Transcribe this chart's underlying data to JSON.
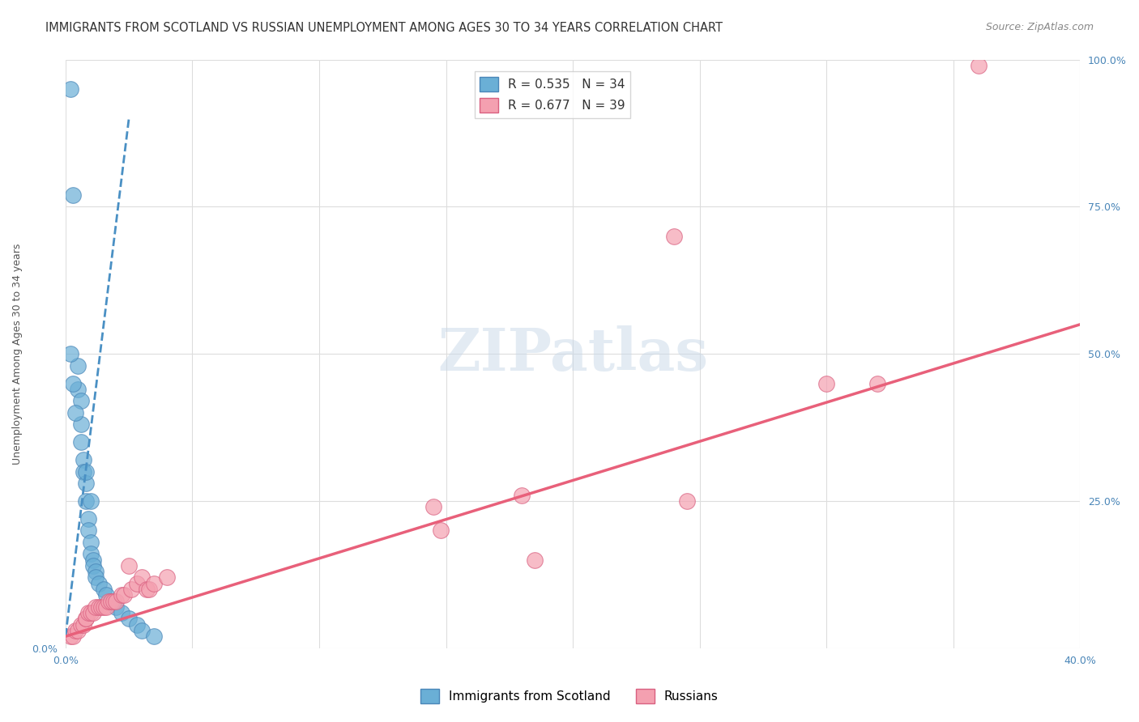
{
  "title": "IMMIGRANTS FROM SCOTLAND VS RUSSIAN UNEMPLOYMENT AMONG AGES 30 TO 34 YEARS CORRELATION CHART",
  "source": "Source: ZipAtlas.com",
  "xlabel": "",
  "ylabel": "Unemployment Among Ages 30 to 34 years",
  "xlim": [
    0.0,
    0.4
  ],
  "ylim": [
    0.0,
    1.0
  ],
  "xticks": [
    0.0,
    0.05,
    0.1,
    0.15,
    0.2,
    0.25,
    0.3,
    0.35,
    0.4
  ],
  "xticklabels": [
    "0.0%",
    "",
    "",
    "",
    "",
    "",
    "",
    "",
    "40.0%"
  ],
  "yticks_left": [
    0.0,
    0.25,
    0.5,
    0.75,
    1.0
  ],
  "yticklabels_left": [
    "0.0%",
    "",
    "",
    "",
    ""
  ],
  "yticks_right": [
    0.0,
    0.25,
    0.5,
    0.75,
    1.0
  ],
  "yticklabels_right": [
    "",
    "25.0%",
    "50.0%",
    "75.0%",
    "100.0%"
  ],
  "legend_r1": "R = 0.535",
  "legend_n1": "N = 34",
  "legend_r2": "R = 0.677",
  "legend_n2": "N = 39",
  "color_blue": "#6aafd6",
  "color_pink": "#f4a0b0",
  "color_blue_line": "#4a90c4",
  "color_pink_line": "#e8607a",
  "color_blue_dark": "#4a86b8",
  "color_pink_dark": "#d96080",
  "watermark": "ZIPatlas",
  "blue_scatter_x": [
    0.002,
    0.003,
    0.005,
    0.005,
    0.006,
    0.006,
    0.007,
    0.007,
    0.008,
    0.008,
    0.009,
    0.009,
    0.01,
    0.01,
    0.011,
    0.011,
    0.012,
    0.012,
    0.013,
    0.015,
    0.016,
    0.018,
    0.02,
    0.022,
    0.025,
    0.028,
    0.03,
    0.035,
    0.002,
    0.003,
    0.004,
    0.006,
    0.008,
    0.01
  ],
  "blue_scatter_y": [
    0.95,
    0.77,
    0.48,
    0.44,
    0.42,
    0.38,
    0.32,
    0.3,
    0.28,
    0.25,
    0.22,
    0.2,
    0.18,
    0.16,
    0.15,
    0.14,
    0.13,
    0.12,
    0.11,
    0.1,
    0.09,
    0.08,
    0.07,
    0.06,
    0.05,
    0.04,
    0.03,
    0.02,
    0.5,
    0.45,
    0.4,
    0.35,
    0.3,
    0.25
  ],
  "pink_scatter_x": [
    0.002,
    0.003,
    0.004,
    0.005,
    0.006,
    0.007,
    0.008,
    0.008,
    0.009,
    0.01,
    0.011,
    0.012,
    0.013,
    0.014,
    0.015,
    0.016,
    0.017,
    0.018,
    0.019,
    0.02,
    0.022,
    0.023,
    0.025,
    0.026,
    0.028,
    0.03,
    0.032,
    0.033,
    0.035,
    0.04,
    0.145,
    0.148,
    0.18,
    0.185,
    0.24,
    0.245,
    0.3,
    0.32,
    0.36
  ],
  "pink_scatter_y": [
    0.02,
    0.02,
    0.03,
    0.03,
    0.04,
    0.04,
    0.05,
    0.05,
    0.06,
    0.06,
    0.06,
    0.07,
    0.07,
    0.07,
    0.07,
    0.07,
    0.08,
    0.08,
    0.08,
    0.08,
    0.09,
    0.09,
    0.14,
    0.1,
    0.11,
    0.12,
    0.1,
    0.1,
    0.11,
    0.12,
    0.24,
    0.2,
    0.26,
    0.15,
    0.7,
    0.25,
    0.45,
    0.45,
    0.99
  ],
  "blue_trendline_x": [
    0.0,
    0.025
  ],
  "blue_trendline_y": [
    0.02,
    0.9
  ],
  "pink_trendline_x": [
    0.0,
    0.4
  ],
  "pink_trendline_y": [
    0.02,
    0.55
  ],
  "grid_color": "#dddddd",
  "background_color": "#ffffff",
  "title_fontsize": 10.5,
  "axis_label_fontsize": 9,
  "tick_fontsize": 9,
  "legend_fontsize": 11,
  "source_fontsize": 9
}
